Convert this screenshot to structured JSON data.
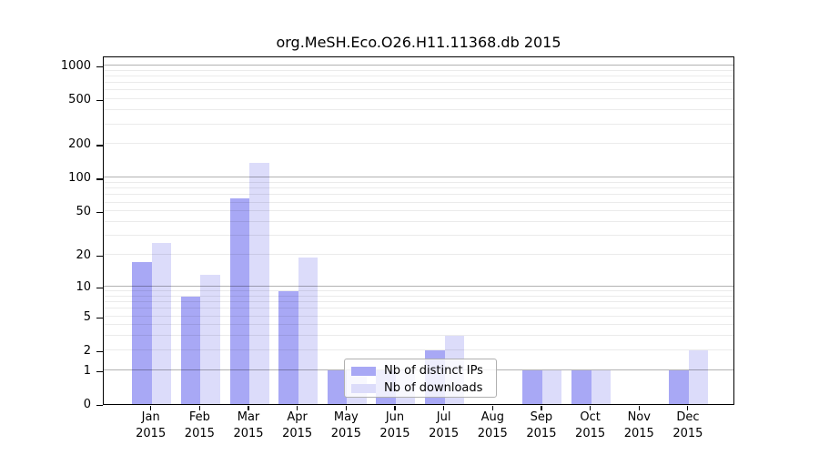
{
  "chart_data": {
    "type": "bar",
    "title": "org.MeSH.Eco.O26.H11.11368.db 2015",
    "categories": [
      "Jan",
      "Feb",
      "Mar",
      "Apr",
      "May",
      "Jun",
      "Jul",
      "Aug",
      "Sep",
      "Oct",
      "Nov",
      "Dec"
    ],
    "year": "2015",
    "series": [
      {
        "name": "Nb of distinct IPs",
        "values": [
          17,
          8,
          66,
          9,
          1,
          1,
          2,
          0,
          1,
          1,
          0,
          1
        ]
      },
      {
        "name": "Nb of downloads",
        "values": [
          26,
          13,
          135,
          19,
          1,
          1,
          3,
          0,
          1,
          1,
          0,
          2
        ]
      }
    ],
    "y_axis": {
      "scale": "log1p",
      "ticks": [
        0,
        1,
        2,
        5,
        10,
        20,
        50,
        100,
        200,
        500,
        1000
      ],
      "major_gridlines": [
        1,
        10,
        100,
        1000
      ],
      "ylim": [
        0,
        1228
      ]
    },
    "legend_position": "lower center",
    "grid": true
  },
  "colors": {
    "bar_distinct_ips": "#a8a8f5",
    "bar_downloads": "#dcdcfa",
    "grid_major": "rgba(0,0,0,0.30)",
    "grid_minor": "rgba(0,0,0,0.08)",
    "spine": "#000000",
    "text": "#000000",
    "legend_border": "#b0b0b0",
    "legend_bg": "rgba(255,255,255,0.8)"
  }
}
